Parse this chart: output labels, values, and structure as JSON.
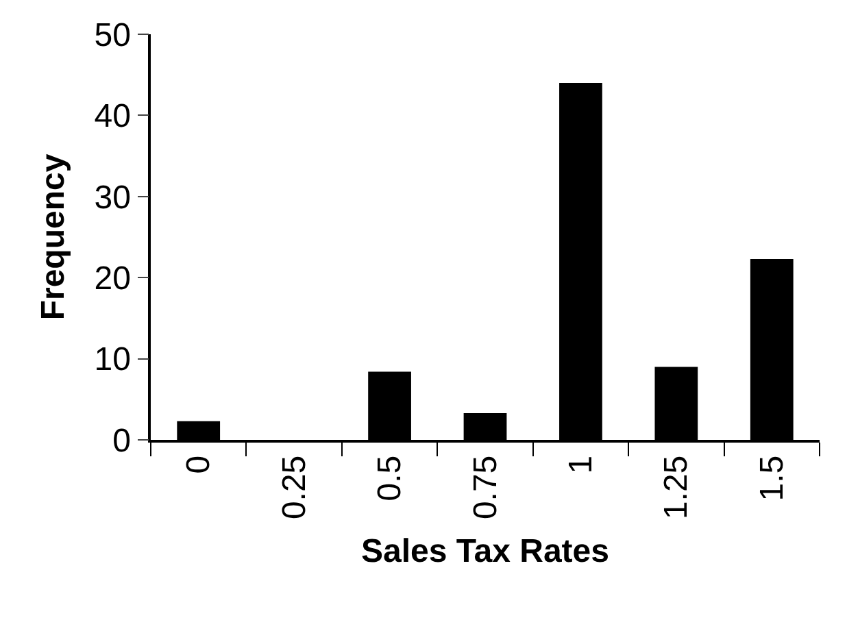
{
  "chart_data": {
    "type": "bar",
    "xlabel": "Sales Tax Rates",
    "ylabel": "Frequency",
    "categories": [
      "0",
      "0.25",
      "0.5",
      "0.75",
      "1",
      "1.25",
      "1.5"
    ],
    "values": [
      2.3,
      0,
      8.4,
      3.3,
      44,
      9,
      22.3
    ],
    "color": "#000000",
    "ylim": [
      0,
      50
    ],
    "yticks": [
      0,
      10,
      20,
      30,
      40,
      50
    ]
  }
}
